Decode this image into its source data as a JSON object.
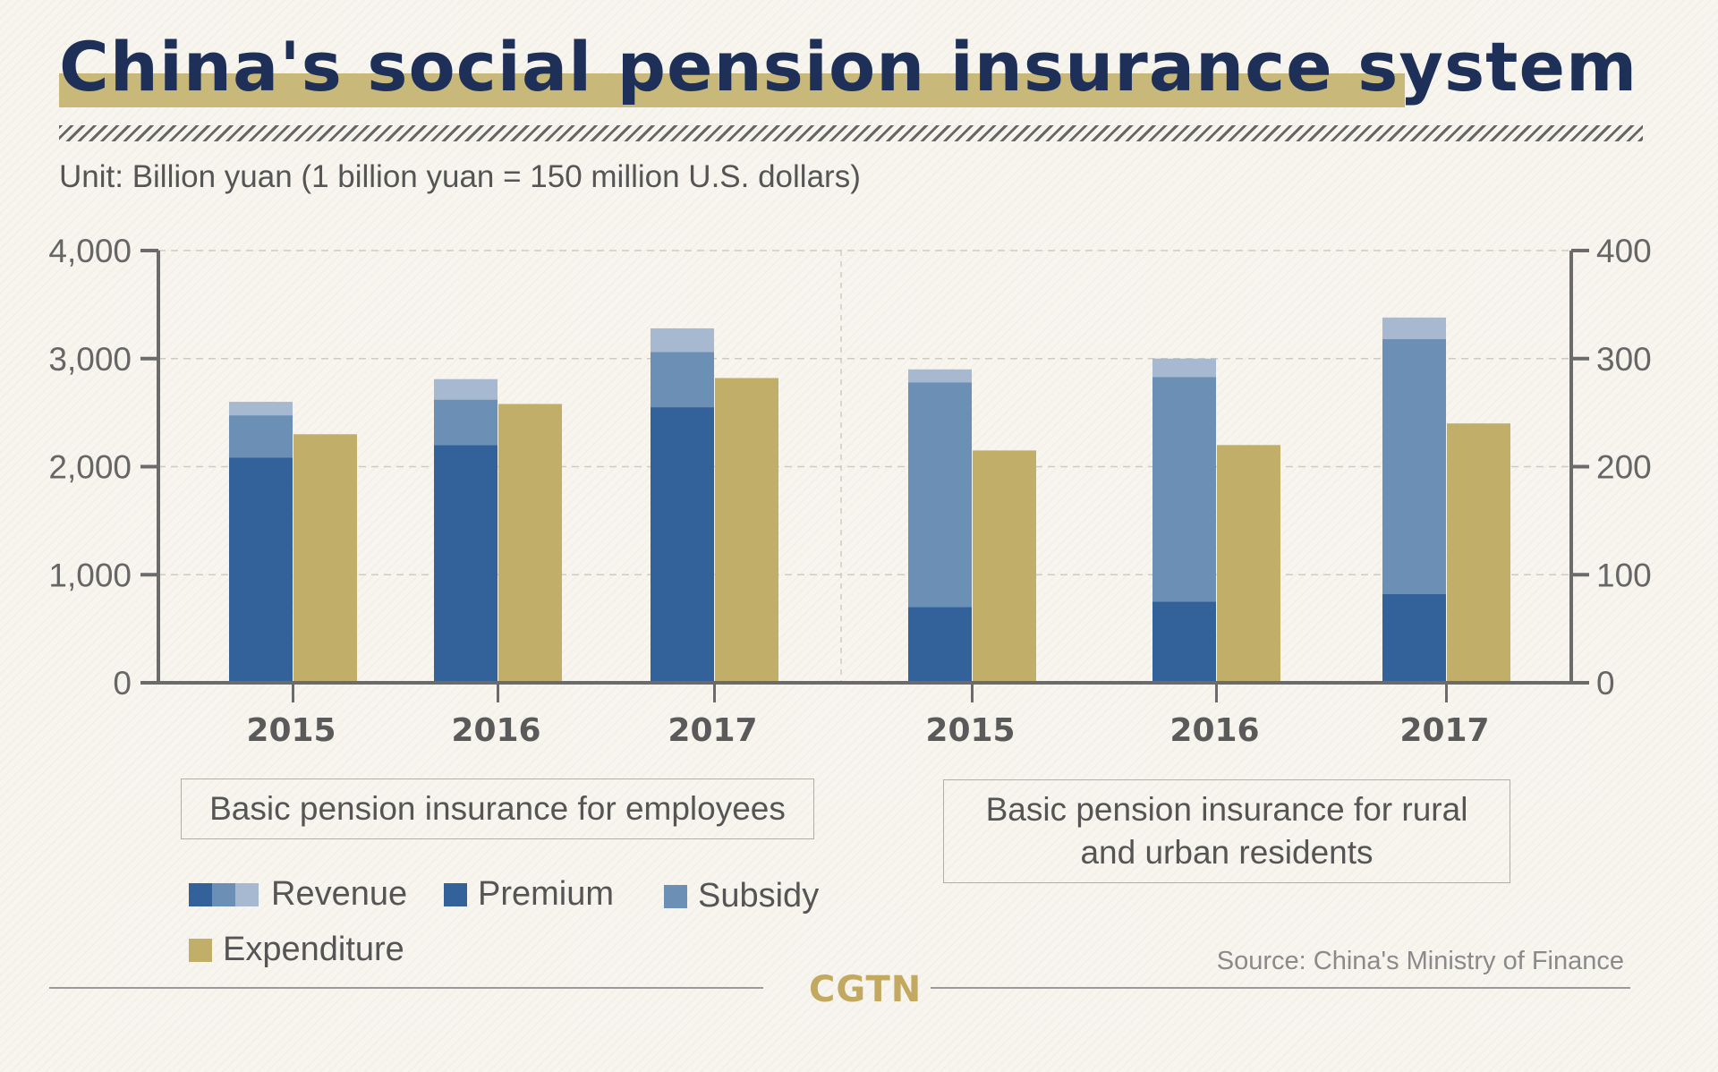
{
  "title": "China's social pension insurance system",
  "unit": "Unit: Billion yuan (1 billion yuan = 150 million U.S. dollars)",
  "source": "Source: China's Ministry of Finance",
  "logo": "CGTN",
  "colors": {
    "premium": "#33629b",
    "subsidy": "#6c8fb5",
    "other_revenue": "#a6b9d0",
    "expenditure": "#c1ae68",
    "axis": "#6b6b6b",
    "title": "#1e2f58"
  },
  "legend": {
    "revenue": "Revenue",
    "premium": "Premium",
    "subsidy": "Subsidy",
    "expenditure": "Expenditure"
  },
  "panels": {
    "left_label": "Basic pension insurance for employees",
    "right_label": "Basic pension insurance for rural and urban residents"
  },
  "chart_data": [
    {
      "type": "bar",
      "panel": "Basic pension insurance for employees",
      "axis": "left",
      "ylim": [
        0,
        4000
      ],
      "yticks": [
        "0",
        "1,000",
        "2,000",
        "3,000",
        "4,000"
      ],
      "categories": [
        "2015",
        "2016",
        "2017"
      ],
      "series": [
        {
          "name": "Premium",
          "values": [
            2085,
            2200,
            2550
          ]
        },
        {
          "name": "Subsidy",
          "values": [
            390,
            420,
            510
          ]
        },
        {
          "name": "Revenue",
          "values": [
            2600,
            2810,
            3280
          ]
        },
        {
          "name": "Expenditure",
          "values": [
            2300,
            2580,
            2820
          ]
        }
      ],
      "grid": true
    },
    {
      "type": "bar",
      "panel": "Basic pension insurance for rural and urban residents",
      "axis": "right",
      "ylim": [
        0,
        400
      ],
      "yticks": [
        "0",
        "100",
        "200",
        "300",
        "400"
      ],
      "categories": [
        "2015",
        "2016",
        "2017"
      ],
      "series": [
        {
          "name": "Premium",
          "values": [
            70,
            75,
            82
          ]
        },
        {
          "name": "Subsidy",
          "values": [
            208,
            208,
            236
          ]
        },
        {
          "name": "Revenue",
          "values": [
            290,
            300,
            338
          ]
        },
        {
          "name": "Expenditure",
          "values": [
            215,
            220,
            240
          ]
        }
      ],
      "grid": true
    }
  ]
}
